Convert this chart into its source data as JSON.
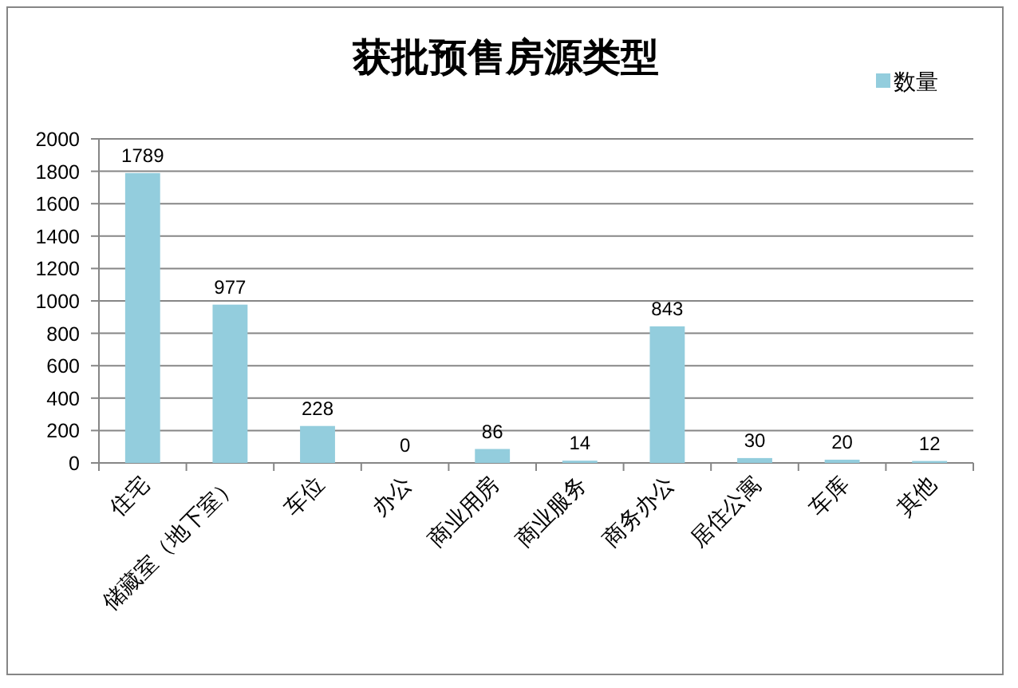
{
  "chart_data": {
    "type": "bar",
    "title": "获批预售房源类型",
    "categories": [
      "住宅",
      "储藏室（地下室）",
      "车位",
      "办公",
      "商业用房",
      "商业服务",
      "商务办公",
      "居住公寓",
      "车库",
      "其他"
    ],
    "series": [
      {
        "name": "数量",
        "color": "#93cddd",
        "values": [
          1789,
          977,
          228,
          0,
          86,
          14,
          843,
          30,
          20,
          12
        ]
      }
    ],
    "ylim": [
      0,
      2000
    ],
    "yticks": [
      0,
      200,
      400,
      600,
      800,
      1000,
      1200,
      1400,
      1600,
      1800,
      2000
    ],
    "grid": "y",
    "legend": "top right",
    "data_labels": true
  }
}
